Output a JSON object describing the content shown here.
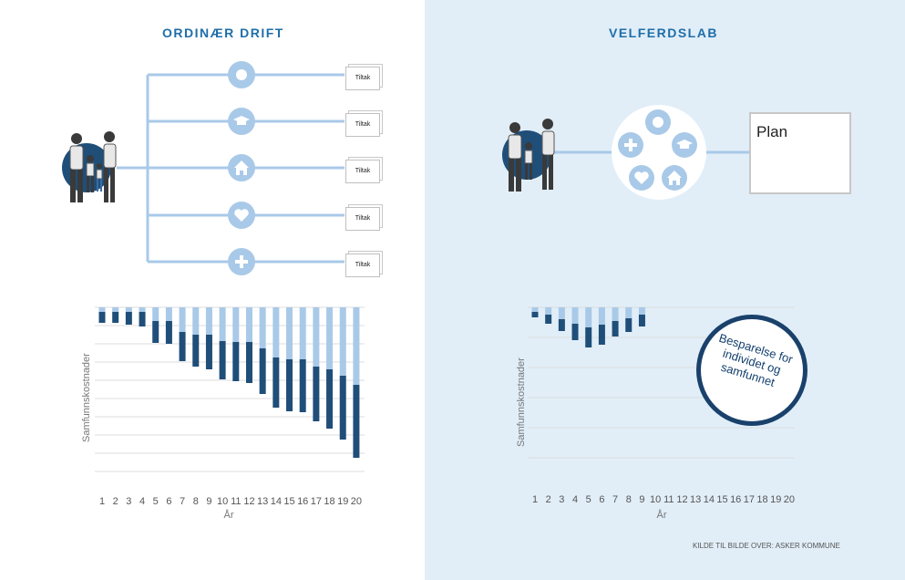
{
  "left": {
    "title": "ORDINÆR DRIFT",
    "services": [
      {
        "icon": "circle-icon",
        "tiltak": "Tiltak"
      },
      {
        "icon": "graduation-cap-icon",
        "tiltak": "Tiltak"
      },
      {
        "icon": "house-icon",
        "tiltak": "Tiltak"
      },
      {
        "icon": "heart-icon",
        "tiltak": "Tiltak"
      },
      {
        "icon": "plus-icon",
        "tiltak": "Tiltak"
      }
    ]
  },
  "right": {
    "title": "VELFERDSLAB",
    "plan_label": "Plan",
    "badge": "Besparelse for individet og samfunnet",
    "source": "KILDE TIL BILDE OVER: ASKER KOMMUNE"
  },
  "colors": {
    "dark_bar": "#1f4e79",
    "light_bar": "#a9c9e8",
    "accent": "#1f6ea9",
    "line": "#a9c9e8"
  },
  "chart_data": [
    {
      "type": "bar",
      "panel": "ORDINÆR DRIFT",
      "xlabel": "År",
      "ylabel": "Samfunnskostnader",
      "categories": [
        1,
        2,
        3,
        4,
        5,
        6,
        7,
        8,
        9,
        10,
        11,
        12,
        13,
        14,
        15,
        16,
        17,
        18,
        19,
        20
      ],
      "light_values": [
        5,
        5,
        5,
        5,
        15,
        15,
        27,
        30,
        30,
        37,
        38,
        38,
        45,
        55,
        57,
        57,
        65,
        68,
        75,
        85
      ],
      "dark_values": [
        12,
        12,
        14,
        16,
        24,
        25,
        32,
        35,
        38,
        42,
        43,
        45,
        50,
        55,
        57,
        58,
        60,
        65,
        70,
        80
      ],
      "ylim": [
        0,
        185
      ]
    },
    {
      "type": "bar",
      "panel": "VELFERDSLAB",
      "xlabel": "År",
      "ylabel": "Samfunnskostnader",
      "categories": [
        1,
        2,
        3,
        4,
        5,
        6,
        7,
        8,
        9,
        10,
        11,
        12,
        13,
        14,
        15,
        16,
        17,
        18,
        19,
        20
      ],
      "light_values": [
        5,
        8,
        13,
        18,
        22,
        19,
        15,
        12,
        8
      ],
      "dark_values": [
        6,
        10,
        13,
        18,
        22,
        22,
        17,
        15,
        13
      ],
      "ylim": [
        0,
        165
      ]
    }
  ]
}
